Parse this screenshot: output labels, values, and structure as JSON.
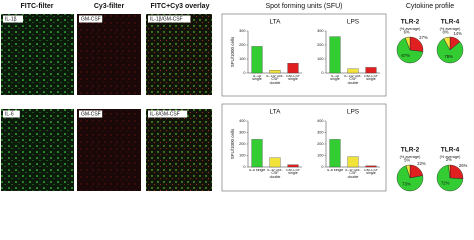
{
  "headers": [
    "FITC-filter",
    "Cy3-filter",
    "FITC+Cy3 overlay",
    "Spot forming units (SFU)",
    "Cytokine profile"
  ],
  "image_labels": [
    [
      "IL-1β",
      "GM-CSF",
      "IL-1β/GM-CSF"
    ],
    [
      "IL-6",
      "GM-CSF",
      "IL-6/GM-CSF"
    ]
  ],
  "chart_data": [
    {
      "type": "bar",
      "title": "LTA",
      "y_label": "SFU/1000 cells",
      "categories": [
        "IL-1β single",
        "IL-1β/ GM-CSF double",
        "GM-CSF single"
      ],
      "values": [
        190,
        20,
        70
      ],
      "colors": [
        "#33cc33",
        "#f2e33a",
        "#e02020"
      ],
      "ylim": [
        0,
        300
      ],
      "yticks": [
        0,
        100,
        200,
        300
      ]
    },
    {
      "type": "bar",
      "title": "LPS",
      "categories": [
        "IL-1β single",
        "IL-1β/ GM-CSF double",
        "GM-CSF single"
      ],
      "values": [
        260,
        30,
        40
      ],
      "colors": [
        "#33cc33",
        "#f2e33a",
        "#e02020"
      ],
      "ylim": [
        0,
        300
      ],
      "yticks": [
        0,
        100,
        200,
        300
      ]
    },
    {
      "type": "bar",
      "title": "LTA",
      "y_label": "SFU/1000 cells",
      "categories": [
        "IL-6 single",
        "IL-6/ GM-CSF double",
        "GM-CSF single"
      ],
      "values": [
        240,
        80,
        20
      ],
      "colors": [
        "#33cc33",
        "#f2e33a",
        "#e02020"
      ],
      "ylim": [
        0,
        400
      ],
      "yticks": [
        0,
        100,
        200,
        300,
        400
      ]
    },
    {
      "type": "bar",
      "title": "LPS",
      "categories": [
        "IL-6 single",
        "IL-6/ GM-CSF double",
        "GM-CSF single"
      ],
      "values": [
        240,
        90,
        10
      ],
      "colors": [
        "#33cc33",
        "#f2e33a",
        "#e02020"
      ],
      "ylim": [
        0,
        400
      ],
      "yticks": [
        0,
        100,
        200,
        300,
        400
      ]
    },
    {
      "type": "pie",
      "title": "TLR-2",
      "subtitle": "(% average)",
      "values": [
        27,
        67,
        6
      ],
      "value_labels": [
        "27%",
        "67%",
        "6%"
      ],
      "colors": [
        "#e02020",
        "#33cc33",
        "#f2e33a"
      ]
    },
    {
      "type": "pie",
      "title": "TLR-4",
      "subtitle": "(% average)",
      "values": [
        14,
        78,
        8
      ],
      "value_labels": [
        "14%",
        "78%",
        "8%"
      ],
      "colors": [
        "#e02020",
        "#33cc33",
        "#f2e33a"
      ]
    },
    {
      "type": "pie",
      "title": "TLR-2",
      "subtitle": "(% average)",
      "values": [
        22,
        73,
        5
      ],
      "value_labels": [
        "22%",
        "73%",
        "5%"
      ],
      "colors": [
        "#e02020",
        "#33cc33",
        "#f2e33a"
      ]
    },
    {
      "type": "pie",
      "title": "TLR-4",
      "subtitle": "(% average)",
      "values": [
        26,
        72,
        2
      ],
      "value_labels": [
        "26%",
        "72%",
        "2%"
      ],
      "colors": [
        "#e02020",
        "#33cc33",
        "#f2e33a"
      ]
    }
  ]
}
